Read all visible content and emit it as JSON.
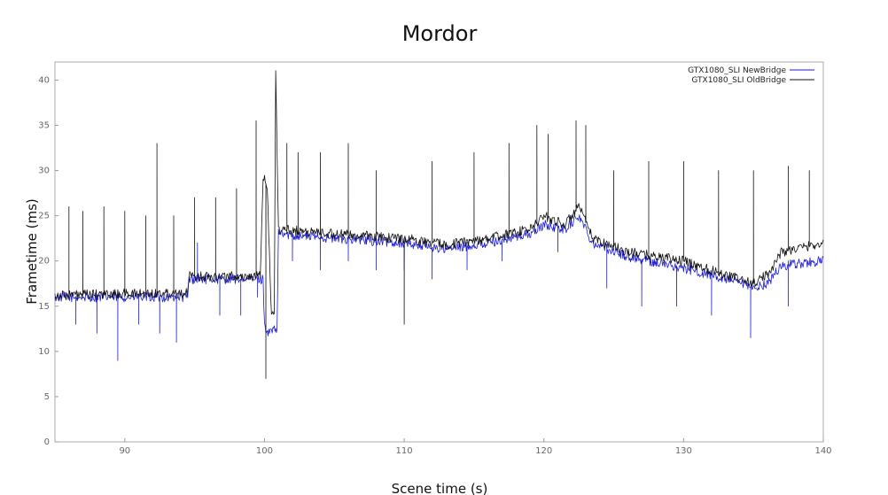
{
  "chart_data": {
    "type": "line",
    "title": "Mordor",
    "xlabel": "Scene time (s)",
    "ylabel": "Frametime (ms)",
    "xlim": [
      85,
      140
    ],
    "ylim": [
      0,
      42
    ],
    "xticks": [
      90,
      100,
      110,
      120,
      130,
      140
    ],
    "yticks": [
      0,
      5,
      10,
      15,
      20,
      25,
      30,
      35,
      40
    ],
    "legend_position": "top-right",
    "series": [
      {
        "name": "GTX1080_SLI NewBridge",
        "color": "#1a1ad6",
        "baseline": {
          "x": [
            85,
            94.5,
            94.6,
            99.9,
            100.0,
            100.3,
            100.5,
            100.9,
            101.0,
            105,
            110,
            113,
            116,
            119,
            120,
            121.5,
            122.5,
            123.5,
            126,
            130,
            133,
            135,
            136,
            137,
            140
          ],
          "y": [
            16,
            16,
            18,
            18,
            12.8,
            12,
            12.3,
            12.3,
            23,
            22.5,
            22,
            21.3,
            22,
            23,
            24,
            23.5,
            25,
            22,
            20.5,
            19.2,
            18,
            17,
            17.5,
            19.5,
            20
          ]
        },
        "spikes": [
          {
            "x": 86.5,
            "y": 13
          },
          {
            "x": 88.0,
            "y": 12
          },
          {
            "x": 89.5,
            "y": 9
          },
          {
            "x": 91.0,
            "y": 13
          },
          {
            "x": 92.5,
            "y": 12
          },
          {
            "x": 93.7,
            "y": 11
          },
          {
            "x": 95.2,
            "y": 22
          },
          {
            "x": 96.8,
            "y": 14
          },
          {
            "x": 98.3,
            "y": 14
          },
          {
            "x": 99.5,
            "y": 16
          },
          {
            "x": 102.0,
            "y": 20
          },
          {
            "x": 104.0,
            "y": 19
          },
          {
            "x": 106.0,
            "y": 20
          },
          {
            "x": 108.0,
            "y": 19
          },
          {
            "x": 110.0,
            "y": 19
          },
          {
            "x": 112.0,
            "y": 18
          },
          {
            "x": 114.5,
            "y": 19
          },
          {
            "x": 117.0,
            "y": 20
          },
          {
            "x": 121.0,
            "y": 21
          },
          {
            "x": 124.5,
            "y": 17
          },
          {
            "x": 127.0,
            "y": 15
          },
          {
            "x": 129.5,
            "y": 15
          },
          {
            "x": 132.0,
            "y": 14
          },
          {
            "x": 134.8,
            "y": 11.5
          },
          {
            "x": 137.5,
            "y": 15
          }
        ]
      },
      {
        "name": "GTX1080_SLI OldBridge",
        "color": "#111111",
        "baseline": {
          "x": [
            85,
            94.5,
            94.6,
            99.7,
            99.9,
            100.2,
            100.5,
            100.7,
            100.8,
            101.0,
            105,
            110,
            113,
            116,
            119,
            120,
            121.5,
            122.5,
            123.5,
            126,
            130,
            133,
            135,
            136,
            137,
            140
          ],
          "y": [
            16.2,
            16.5,
            18.3,
            18.3,
            29.5,
            28,
            14,
            14,
            41,
            23.5,
            23,
            22.5,
            21.8,
            22.5,
            23.5,
            25,
            24,
            26,
            22.5,
            21,
            20,
            18.5,
            17.5,
            18.5,
            21,
            22
          ]
        },
        "spikes": [
          {
            "x": 86.0,
            "y": 26
          },
          {
            "x": 87.0,
            "y": 25.5
          },
          {
            "x": 88.5,
            "y": 26
          },
          {
            "x": 90.0,
            "y": 25.5
          },
          {
            "x": 91.5,
            "y": 25
          },
          {
            "x": 92.3,
            "y": 33
          },
          {
            "x": 93.5,
            "y": 25
          },
          {
            "x": 95.0,
            "y": 27
          },
          {
            "x": 96.5,
            "y": 27
          },
          {
            "x": 98.0,
            "y": 28
          },
          {
            "x": 99.4,
            "y": 35.5
          },
          {
            "x": 100.1,
            "y": 7
          },
          {
            "x": 101.6,
            "y": 33
          },
          {
            "x": 102.4,
            "y": 32
          },
          {
            "x": 104.0,
            "y": 32
          },
          {
            "x": 106.0,
            "y": 33
          },
          {
            "x": 108.0,
            "y": 30
          },
          {
            "x": 110.0,
            "y": 13
          },
          {
            "x": 112.0,
            "y": 31
          },
          {
            "x": 115.0,
            "y": 32
          },
          {
            "x": 117.5,
            "y": 33
          },
          {
            "x": 119.5,
            "y": 35
          },
          {
            "x": 120.3,
            "y": 34
          },
          {
            "x": 122.3,
            "y": 35.5
          },
          {
            "x": 123.0,
            "y": 35
          },
          {
            "x": 125.0,
            "y": 30
          },
          {
            "x": 127.5,
            "y": 31
          },
          {
            "x": 130.0,
            "y": 31
          },
          {
            "x": 132.5,
            "y": 30
          },
          {
            "x": 135.0,
            "y": 30
          },
          {
            "x": 137.5,
            "y": 30.5
          },
          {
            "x": 139.0,
            "y": 30
          }
        ]
      }
    ]
  }
}
